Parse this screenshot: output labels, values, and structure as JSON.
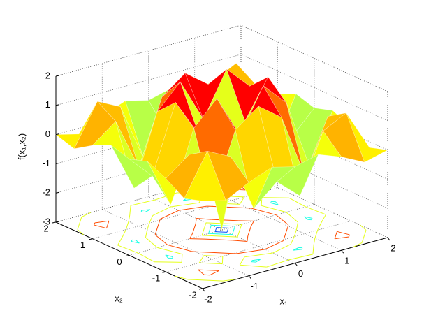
{
  "chart_data": {
    "type": "surface",
    "x": [
      -2,
      -1.5,
      -1,
      -0.5,
      0,
      0.5,
      1,
      1.5,
      2
    ],
    "y": [
      -2,
      -1.5,
      -1,
      -0.5,
      0,
      0.5,
      1,
      1.5,
      2
    ],
    "z": [
      [
        0,
        -0.2,
        0.2,
        0.5,
        0.3,
        0.5,
        0.2,
        -0.2,
        0
      ],
      [
        -0.2,
        1.2,
        0.8,
        -1.2,
        -0.5,
        -1.2,
        0.8,
        1.2,
        -0.2
      ],
      [
        0.2,
        0.8,
        -1,
        1.2,
        1.8,
        1.2,
        -1,
        0.8,
        0.2
      ],
      [
        0.5,
        -1.2,
        1.2,
        2,
        0.5,
        2,
        1.2,
        -1.2,
        0.5
      ],
      [
        0.3,
        -0.5,
        1.8,
        0.5,
        -3,
        0.5,
        1.8,
        -0.5,
        0.3
      ],
      [
        0.5,
        -1.2,
        1.2,
        2,
        0.5,
        2,
        1.2,
        -1.2,
        0.5
      ],
      [
        0.2,
        0.8,
        -1,
        1.2,
        1.8,
        1.2,
        -1,
        0.8,
        0.2
      ],
      [
        -0.2,
        1.2,
        0.8,
        -1.2,
        -0.5,
        -1.2,
        0.8,
        1.2,
        -0.2
      ],
      [
        0,
        -0.2,
        0.2,
        0.5,
        0.3,
        0.5,
        0.2,
        -0.2,
        0
      ]
    ],
    "xlim": [
      -2,
      2
    ],
    "ylim": [
      -2,
      2
    ],
    "zlim": [
      -3,
      2
    ],
    "xticks": [
      -2,
      -1,
      0,
      1,
      2
    ],
    "yticks": [
      -2,
      -1,
      0,
      1,
      2
    ],
    "zticks": [
      -3,
      -2,
      -1,
      0,
      1,
      2
    ],
    "xlabel": "x₁",
    "ylabel": "x₂",
    "zlabel": "f(x₁,x₂)",
    "grid": true,
    "colormap": "jet",
    "contours": true
  }
}
